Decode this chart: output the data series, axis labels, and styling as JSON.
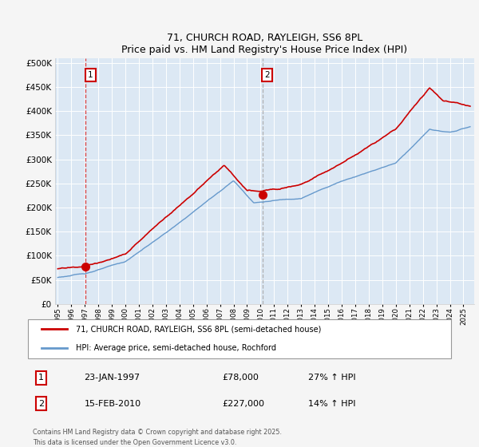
{
  "title1": "71, CHURCH ROAD, RAYLEIGH, SS6 8PL",
  "title2": "Price paid vs. HM Land Registry's House Price Index (HPI)",
  "background_color": "#f5f5f5",
  "plot_bg_color": "#dce8f4",
  "grid_color": "#ffffff",
  "red_color": "#cc0000",
  "blue_color": "#6699cc",
  "legend_label_red": "71, CHURCH ROAD, RAYLEIGH, SS6 8PL (semi-detached house)",
  "legend_label_blue": "HPI: Average price, semi-detached house, Rochford",
  "purchase1_date": "23-JAN-1997",
  "purchase1_price": "£78,000",
  "purchase1_hpi": "27% ↑ HPI",
  "purchase1_year": 1997.07,
  "purchase1_price_val": 78000,
  "purchase2_date": "15-FEB-2010",
  "purchase2_price": "£227,000",
  "purchase2_hpi": "14% ↑ HPI",
  "purchase2_year": 2010.13,
  "purchase2_price_val": 227000,
  "ylim_max": 510000,
  "ylim_min": 0,
  "xlim_min": 1994.8,
  "xlim_max": 2025.8,
  "footer": "Contains HM Land Registry data © Crown copyright and database right 2025.\nThis data is licensed under the Open Government Licence v3.0."
}
